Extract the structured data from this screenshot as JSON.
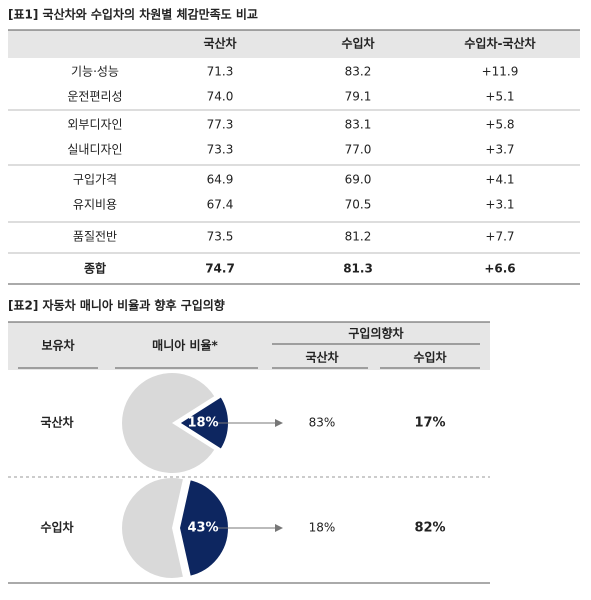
{
  "table1": {
    "title": "[표1] 국산차와 수입차의 차원별 체감만족도 비교",
    "headers": [
      "국산차",
      "수입차",
      "수입차-국산차"
    ],
    "rows": [
      [
        "기능·성능",
        "71.3",
        "83.2",
        "+11.9"
      ],
      [
        "운전편리성",
        "74.0",
        "79.1",
        "+5.1"
      ],
      [
        "외부디자인",
        "77.3",
        "83.1",
        "+5.8"
      ],
      [
        "실내디자인",
        "73.3",
        "77.0",
        "+3.7"
      ],
      [
        "구입가격",
        "64.9",
        "69.0",
        "+4.1"
      ],
      [
        "유지비용",
        "67.4",
        "70.5",
        "+3.1"
      ],
      [
        "품질전반",
        "73.5",
        "81.2",
        "+7.7"
      ],
      [
        "종합",
        "74.7",
        "81.3",
        "+6.6"
      ]
    ]
  },
  "table2": {
    "title": "[표2] 자동차 매니아 비율과 향후 구입의향",
    "headers": {
      "owned": "보유차",
      "mania": "매니아 비율*",
      "intent": "구입의향차",
      "domestic": "국산차",
      "imported": "수입차"
    },
    "rows": [
      {
        "owned": "국산차",
        "mania": {
          "value": 18,
          "label": "18%"
        },
        "domestic": "83%",
        "imported": "17%"
      },
      {
        "owned": "수입차",
        "mania": {
          "value": 43,
          "label": "43%"
        },
        "domestic": "18%",
        "imported": "82%"
      }
    ]
  }
}
